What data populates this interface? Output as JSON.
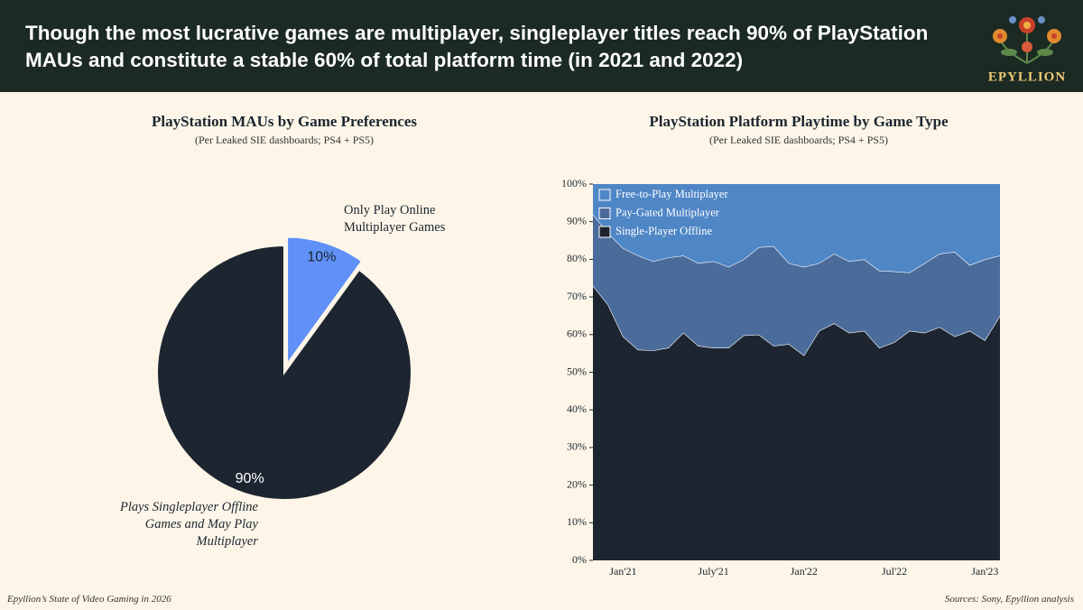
{
  "header": {
    "title": "Though the most lucrative games are multiplayer, singleplayer titles reach 90% of PlayStation MAUs and constitute a stable 60% of total platform time (in 2021 and 2022)",
    "logo": "EPYLLION"
  },
  "chart_data": [
    {
      "type": "pie",
      "title": "PlayStation MAUs by Game Preferences",
      "subtitle": "(Per Leaked SIE dashboards; PS4 + PS5)",
      "categories": [
        "Only Play Online Multiplayer Games",
        "Plays Singleplayer Offline Games and May Play Multiplayer"
      ],
      "values": [
        10,
        90
      ],
      "value_labels": [
        "10%",
        "90%"
      ],
      "colors": [
        "#6090f8",
        "#1c2530"
      ],
      "explode": [
        true,
        false
      ]
    },
    {
      "type": "area",
      "stacked": true,
      "title": "PlayStation Platform Playtime by Game Type",
      "subtitle": "(Per Leaked SIE dashboards; PS4 + PS5)",
      "categories": [
        null,
        null,
        "Jan'21",
        null,
        null,
        null,
        null,
        null,
        "July'21",
        null,
        null,
        null,
        null,
        null,
        "Jan'22",
        null,
        null,
        null,
        null,
        null,
        "Jul'22",
        null,
        null,
        null,
        null,
        null,
        "Jan'23",
        null
      ],
      "series": [
        {
          "name": "Single-Player Offline",
          "color": "#1c2530",
          "values": [
            73,
            68,
            59.5,
            56,
            55.8,
            56.5,
            60.5,
            57,
            56.5,
            56.5,
            59.8,
            60,
            57,
            57.5,
            54.5,
            61,
            63,
            60.5,
            61,
            56.5,
            58,
            61,
            60.5,
            62,
            59.5,
            61,
            58.5,
            65
          ]
        },
        {
          "name": "Pay-Gated Multiplayer",
          "color": "#4b6b9b",
          "values": [
            19,
            19,
            23.5,
            25,
            23.7,
            24,
            20.5,
            22,
            23,
            21.5,
            20.2,
            23.2,
            26.5,
            21.5,
            23.5,
            18,
            18.5,
            19,
            19,
            20.5,
            18.8,
            15.5,
            18.5,
            19.5,
            22.5,
            17.5,
            21.5,
            16
          ]
        },
        {
          "name": "Free-to-Play Multiplayer",
          "color": "#4f86c6",
          "values": [
            8,
            13,
            17,
            19,
            20.5,
            19.5,
            19,
            21,
            20.5,
            22,
            20,
            16.8,
            16.5,
            21,
            22,
            21,
            18.5,
            20.5,
            20,
            23,
            23.2,
            23.5,
            21,
            18.5,
            18,
            21.5,
            20,
            19
          ]
        }
      ],
      "ylim": [
        0,
        100
      ],
      "yticks": [
        {
          "value": 0,
          "label": "0%"
        },
        {
          "value": 10,
          "label": "10%"
        },
        {
          "value": 20,
          "label": "20%"
        },
        {
          "value": 30,
          "label": "30%"
        },
        {
          "value": 40,
          "label": "40%"
        },
        {
          "value": 50,
          "label": "50%"
        },
        {
          "value": 60,
          "label": "60%"
        },
        {
          "value": 70,
          "label": "70%"
        },
        {
          "value": 80,
          "label": "80%"
        },
        {
          "value": 90,
          "label": "90%"
        },
        {
          "value": 100,
          "label": "100%"
        }
      ],
      "legend": "upper left"
    }
  ],
  "footer": {
    "left": "Epyllion’s State of Video Gaming in 2026",
    "right": "Sources: Sony, Epyllion analysis"
  }
}
